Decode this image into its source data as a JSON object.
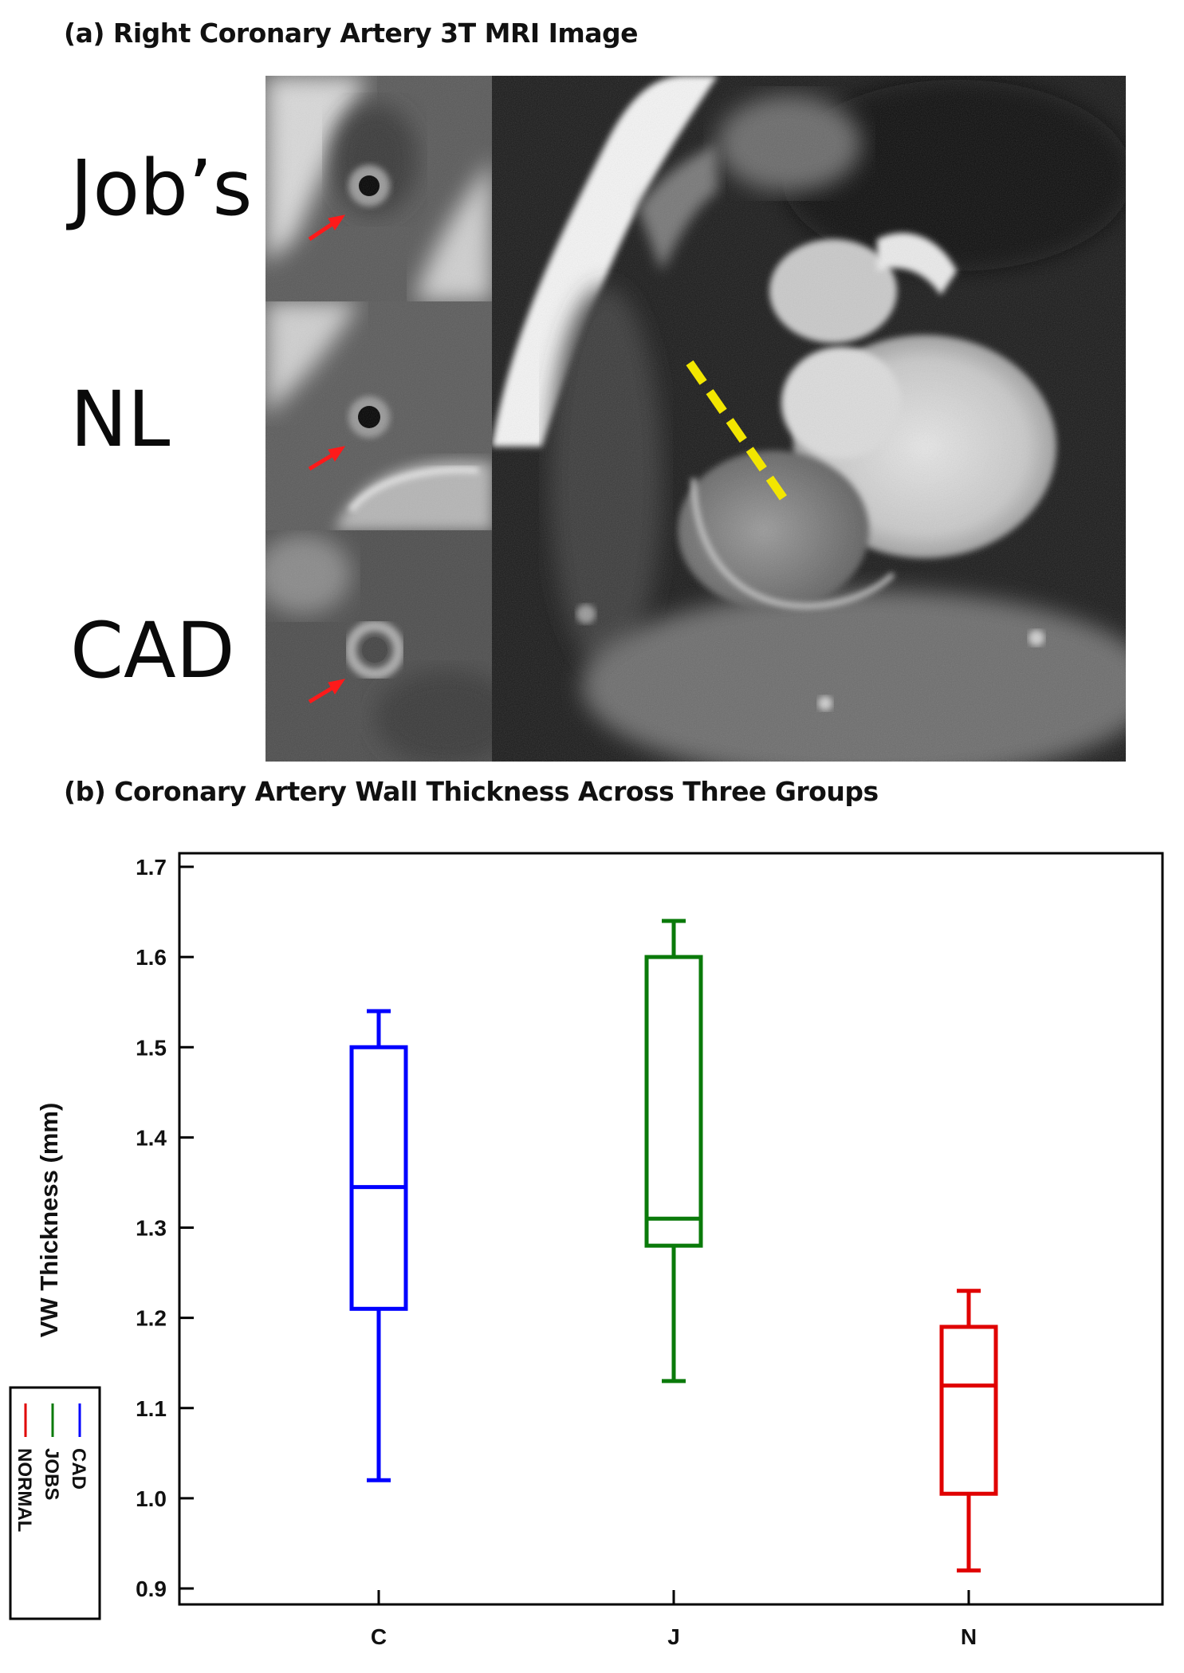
{
  "panel_a": {
    "title": "(a) Right Coronary Artery 3T MRI Image",
    "groups": [
      "Job’s",
      "NL",
      "CAD"
    ]
  },
  "panel_b": {
    "title": "(b) Coronary Artery Wall Thickness  Across  Three Groups"
  },
  "colors": {
    "cad": "#0000ff",
    "jobs": "#0a7a0a",
    "normal": "#e00000",
    "dashed_line": "#f2e600",
    "arrow": "#ff1a1a"
  },
  "chart_data": {
    "type": "box",
    "ylabel": "VW Thickness (mm)",
    "xlabel": "",
    "ylim": [
      0.9,
      1.7
    ],
    "yticks": [
      "0.9",
      "1.0",
      "1.1",
      "1.2",
      "1.3",
      "1.4",
      "1.5",
      "1.6",
      "1.7"
    ],
    "categories": [
      "C",
      "J",
      "N"
    ],
    "boxes": [
      {
        "category": "C",
        "min": 1.02,
        "q1": 1.21,
        "median": 1.345,
        "q3": 1.5,
        "max": 1.54,
        "color": "#0000ff"
      },
      {
        "category": "J",
        "min": 1.13,
        "q1": 1.28,
        "median": 1.31,
        "q3": 1.6,
        "max": 1.64,
        "color": "#0a7a0a"
      },
      {
        "category": "N",
        "min": 0.92,
        "q1": 1.005,
        "median": 1.125,
        "q3": 1.19,
        "max": 1.23,
        "color": "#e00000"
      }
    ],
    "legend": {
      "placement": "lower-left, rotated",
      "entries": [
        {
          "name": "CAD",
          "color": "#0000ff"
        },
        {
          "name": "JOBS",
          "color": "#0a7a0a"
        },
        {
          "name": "NORMAL",
          "color": "#e00000"
        }
      ]
    },
    "grid": false
  }
}
